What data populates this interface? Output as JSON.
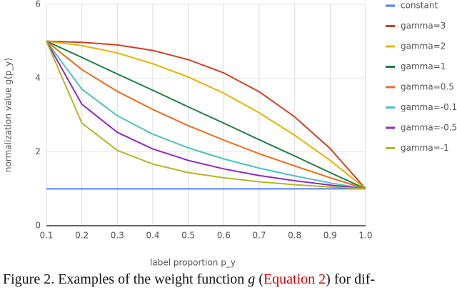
{
  "chart_data": {
    "type": "line",
    "x": [
      0.1,
      0.2,
      0.3,
      0.4,
      0.5,
      0.6,
      0.7,
      0.8,
      0.9,
      1.0
    ],
    "series": [
      {
        "name": "constant",
        "color": "#4a86e8",
        "values": [
          1,
          1,
          1,
          1,
          1,
          1,
          1,
          1,
          1,
          1
        ]
      },
      {
        "name": "gamma=3",
        "color": "#cc4125",
        "values": [
          5.0,
          4.97,
          4.9,
          4.75,
          4.5,
          4.14,
          3.63,
          2.95,
          2.09,
          1.0
        ]
      },
      {
        "name": "gamma=2",
        "color": "#e6b400",
        "values": [
          5.0,
          4.88,
          4.68,
          4.39,
          4.03,
          3.59,
          3.06,
          2.45,
          1.77,
          1.0
        ]
      },
      {
        "name": "gamma=1",
        "color": "#1e7b46",
        "values": [
          5.0,
          4.56,
          4.11,
          3.67,
          3.22,
          2.78,
          2.33,
          1.89,
          1.44,
          1.0
        ]
      },
      {
        "name": "gamma=0.5",
        "color": "#f06a1c",
        "values": [
          5.0,
          4.23,
          3.64,
          3.15,
          2.71,
          2.32,
          1.95,
          1.62,
          1.3,
          1.0
        ]
      },
      {
        "name": "gamma=-0.1",
        "color": "#4fc0c0",
        "values": [
          5.0,
          3.7,
          2.98,
          2.48,
          2.11,
          1.81,
          1.56,
          1.35,
          1.16,
          1.0
        ]
      },
      {
        "name": "gamma=-0.5",
        "color": "#8e2bc0",
        "values": [
          5.0,
          3.29,
          2.53,
          2.08,
          1.77,
          1.54,
          1.36,
          1.22,
          1.1,
          1.0
        ]
      },
      {
        "name": "gamma=-1",
        "color": "#b5b52a",
        "values": [
          5.0,
          2.78,
          2.04,
          1.67,
          1.44,
          1.3,
          1.19,
          1.11,
          1.05,
          1.0
        ]
      }
    ],
    "x_label": "label proportion p_y",
    "y_label": "normalization value g(p_y)",
    "xlim": [
      0.1,
      1.0
    ],
    "xticks": [
      0.1,
      0.2,
      0.3,
      0.4,
      0.5,
      0.6,
      0.7,
      0.8,
      0.9,
      {
        "value": 1.0,
        "label": "1.0"
      }
    ],
    "ylim": [
      0,
      6
    ],
    "yticks": [
      0,
      2,
      4,
      6
    ],
    "grid": true,
    "legend": "right"
  },
  "caption": [
    "Figure 2. Examples of the weight function ",
    "g",
    " (",
    "Equation 2",
    ") for dif-"
  ]
}
